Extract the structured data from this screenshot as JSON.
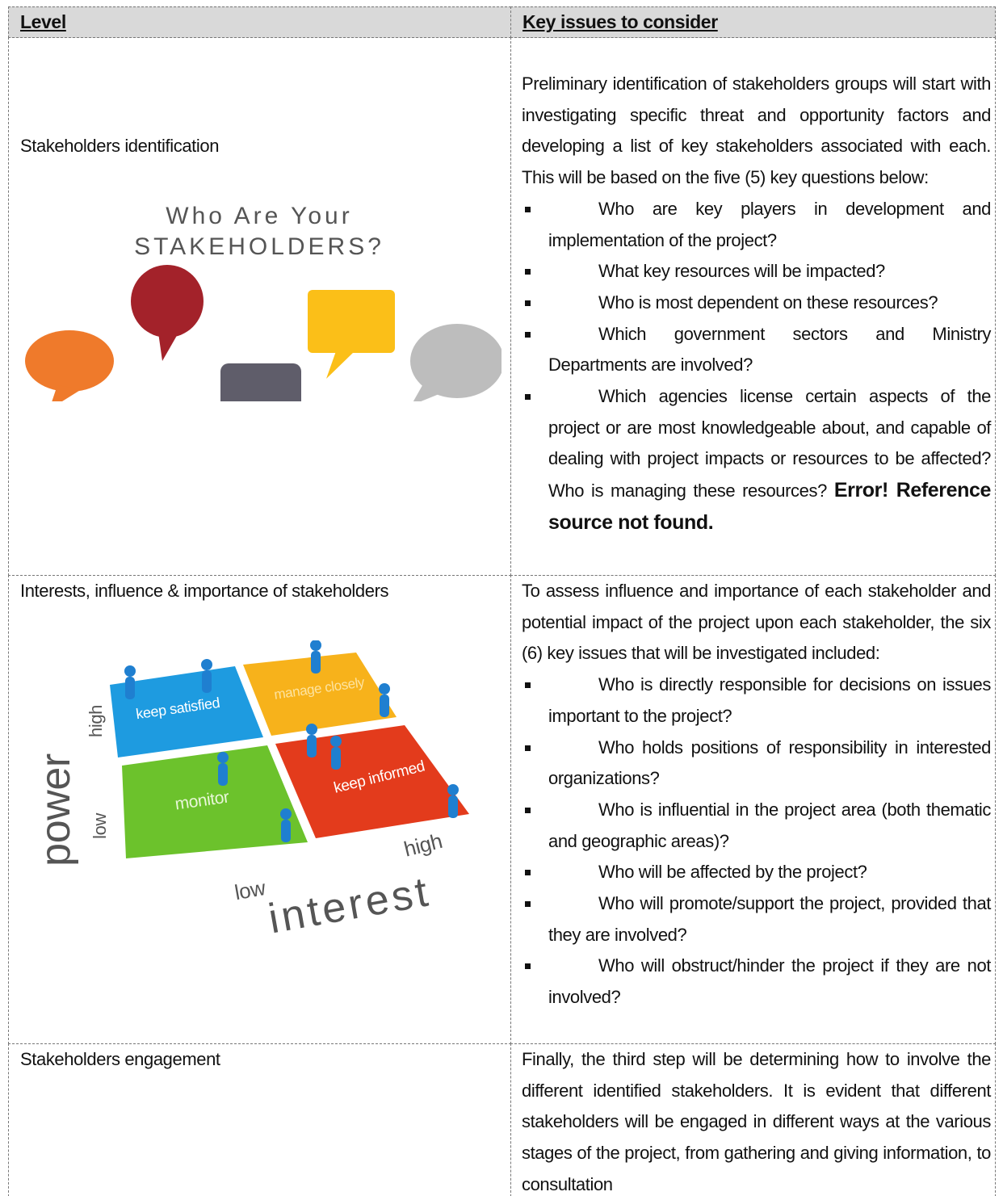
{
  "table": {
    "headers": [
      "Level",
      "Key issues to consider"
    ],
    "rows": [
      {
        "level": "Stakeholders identification",
        "image_text": [
          "Who Are Your",
          "STAKEHOLDERS?"
        ],
        "intro": "Preliminary identification of stakeholders groups will start with investigating specific threat and opportunity factors and developing a list of key stakeholders associated with each. This will be based on the five (5) key questions below:",
        "bullets": [
          "Who are key players in development and implementation of the project?",
          "What key resources will be impacted?",
          "Who is most dependent on these resources?",
          "Which government sectors and Ministry Departments are involved?",
          "Which agencies license certain aspects of the project or are most knowledgeable about, and capable of dealing with project impacts or resources to be affected? Who is managing these resources?"
        ],
        "note": "Error! Reference source not found."
      },
      {
        "level": "Interests, influence & importance of stakeholders",
        "image_text": {
          "keep_satisfied": "keep satisfied",
          "manage_closely": "manage closely",
          "monitor": "monitor",
          "keep_informed": "keep informed",
          "power": "power",
          "power_high": "high",
          "power_low": "low",
          "interest_low": "low",
          "interest_high": "high",
          "interest": "interest"
        },
        "intro": "To assess influence and importance of each stakeholder and potential impact of the project upon each stakeholder, the six (6) key issues that will be investigated included:",
        "bullets": [
          "Who is directly responsible for decisions on issues important to the project?",
          "Who holds positions of responsibility in interested organizations?",
          "Who is influential in the project area (both thematic and geographic areas)?",
          "Who will be affected by the project?",
          "Who will promote/support the project, provided that they are involved?",
          "Who will obstruct/hinder the project if they are not involved?"
        ]
      },
      {
        "level": "Stakeholders engagement",
        "intro": "Finally, the third step will be determining how to involve the different identified stakeholders. It is evident that different stakeholders will be engaged in different ways at the various stages of the project, from gathering and giving information, to consultation"
      }
    ]
  }
}
